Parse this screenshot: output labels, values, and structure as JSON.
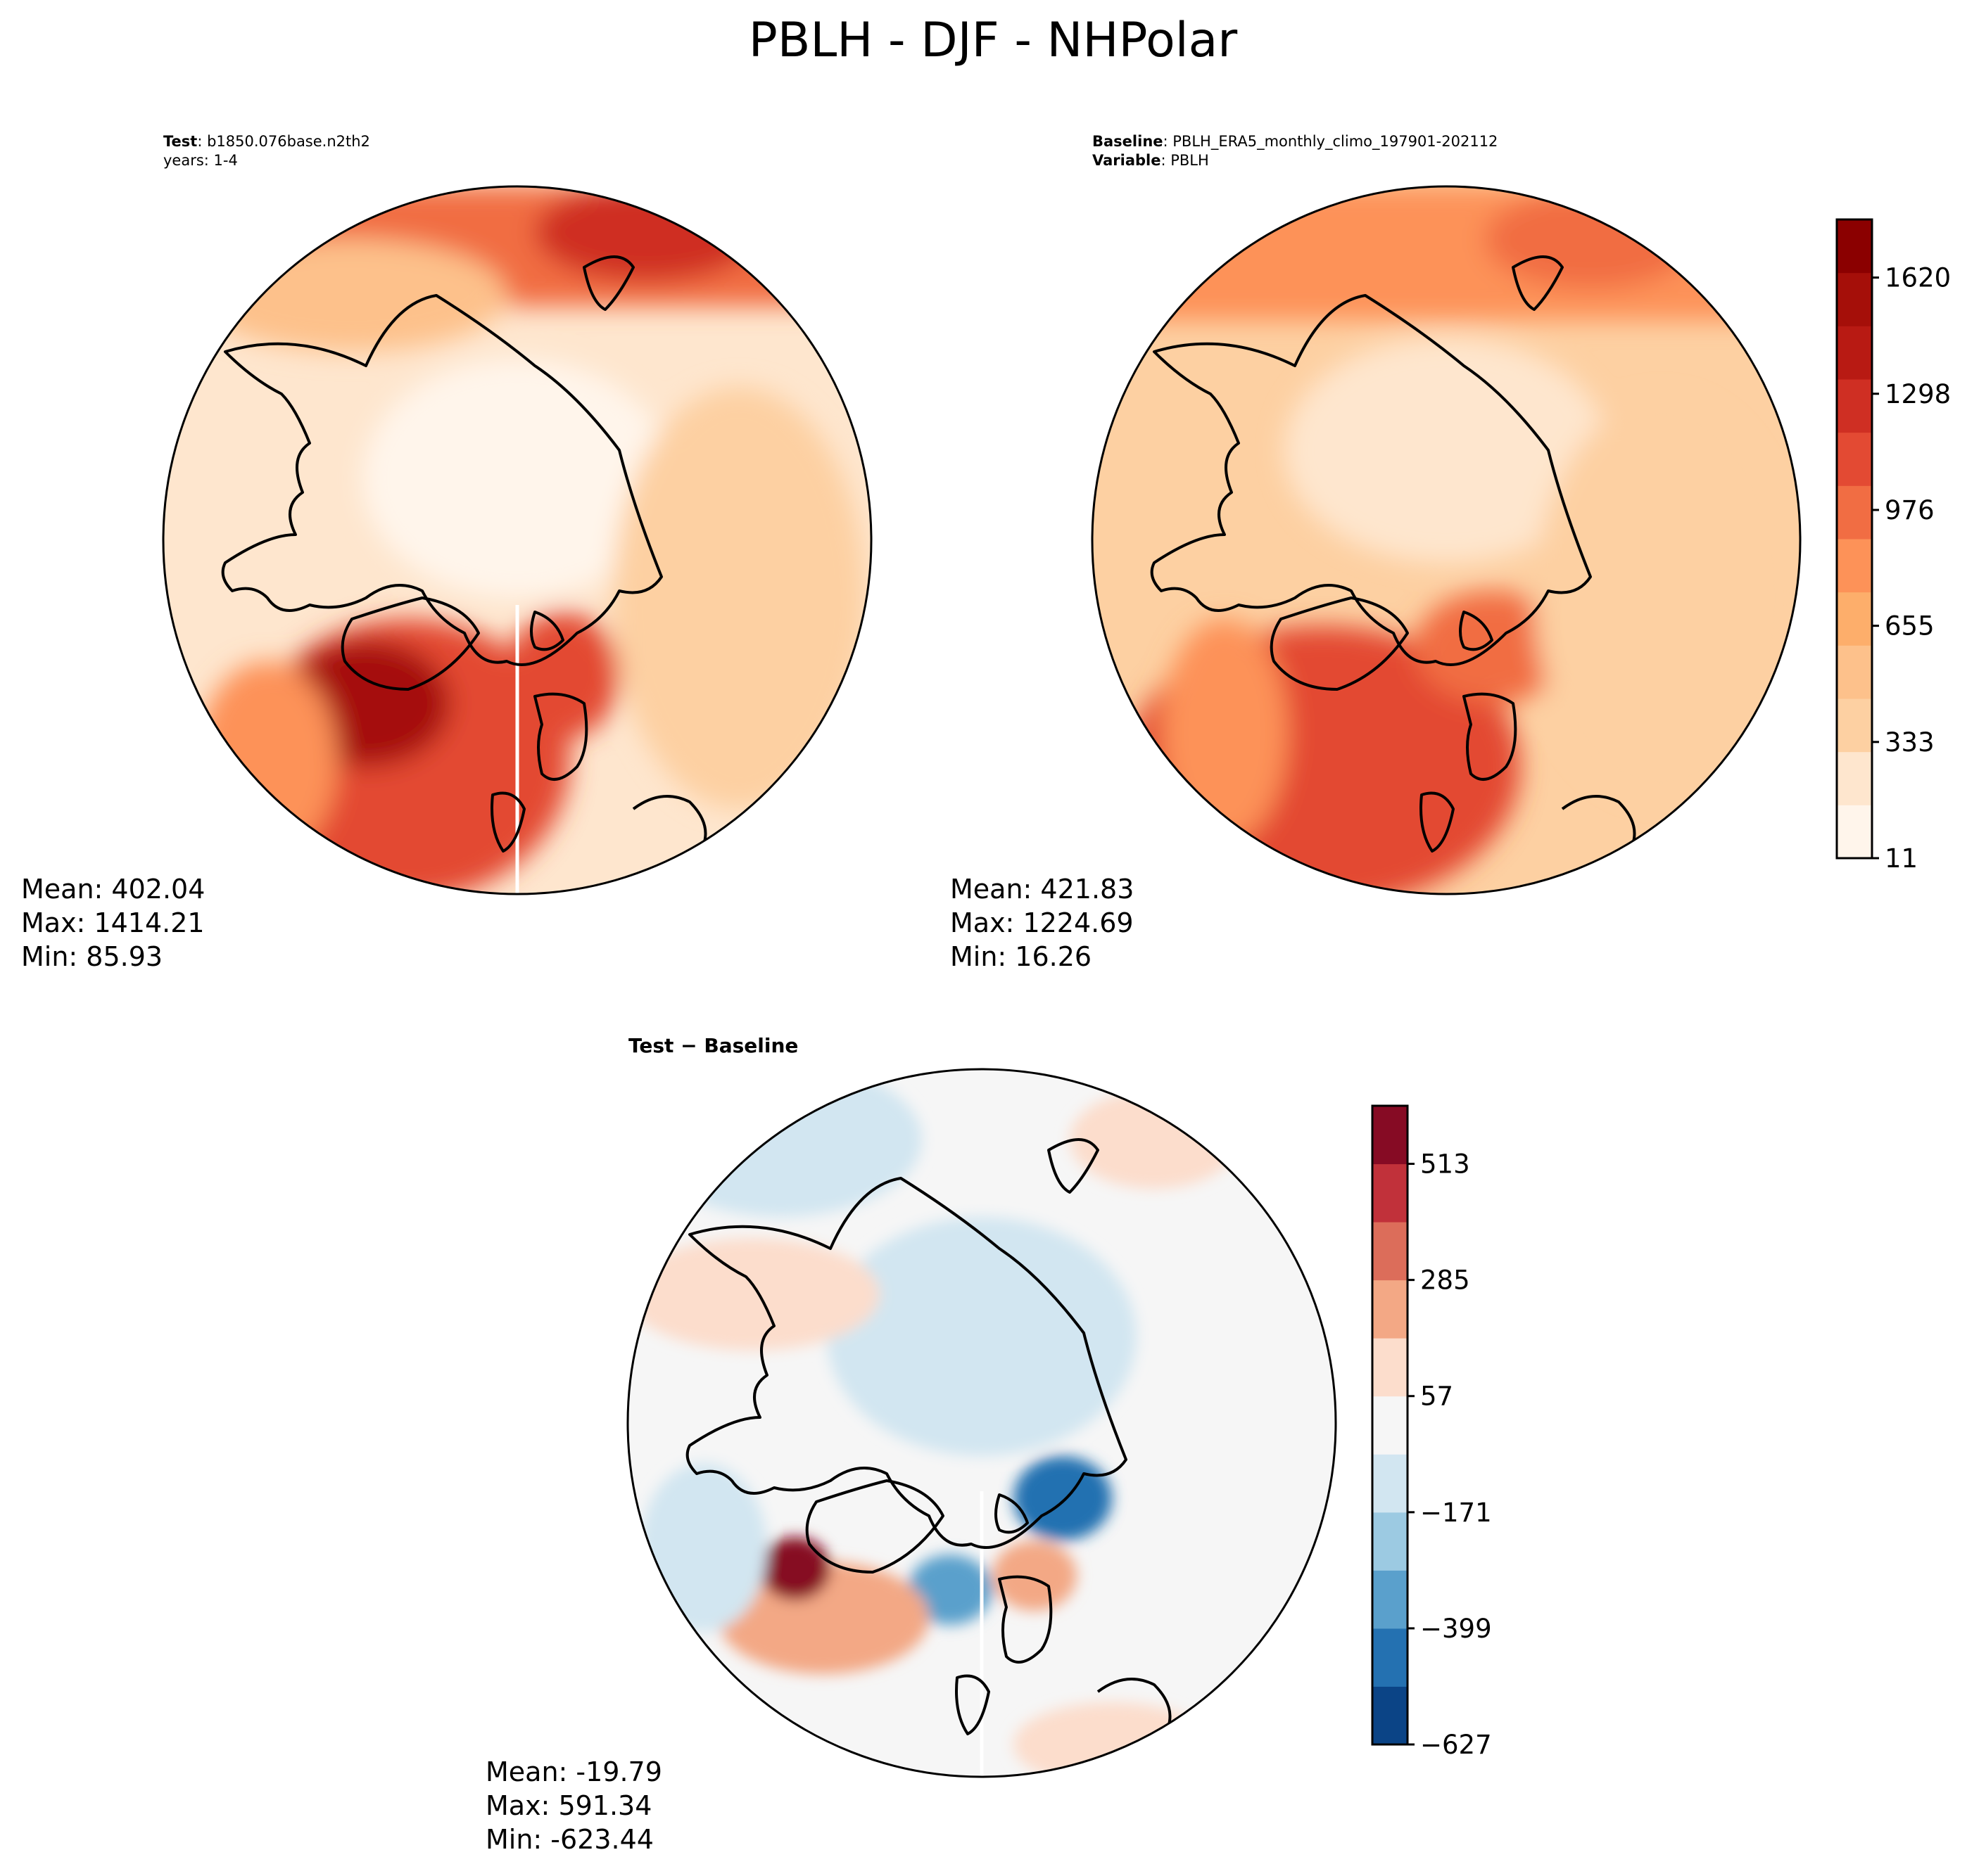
{
  "figure": {
    "title": "PBLH - DJF - NHPolar"
  },
  "chart_data": [
    {
      "type": "heatmap",
      "projection": "north-polar-stereographic",
      "panel": "test",
      "title_lines": [
        {
          "bold": "Test",
          "rest": ": b1850.076base.n2th2"
        },
        {
          "bold": "",
          "rest": "years: 1-4"
        }
      ],
      "stats": {
        "mean": "Mean: 402.04",
        "max": "Max: 1414.21",
        "min": "Min: 85.93"
      },
      "variable": "PBLH",
      "value_range": [
        85.93,
        1414.21
      ]
    },
    {
      "type": "heatmap",
      "projection": "north-polar-stereographic",
      "panel": "baseline",
      "title_lines": [
        {
          "bold": "Baseline",
          "rest": ": PBLH_ERA5_monthly_climo_197901-202112"
        },
        {
          "bold": "Variable",
          "rest": ": PBLH"
        }
      ],
      "stats": {
        "mean": "Mean: 421.83",
        "max": "Max: 1224.69",
        "min": "Min: 16.26"
      },
      "variable": "PBLH",
      "value_range": [
        16.26,
        1224.69
      ],
      "colorbar": {
        "levels_min": 11,
        "levels_max": 1781,
        "ticks": [
          "11",
          "333",
          "655",
          "976",
          "1298",
          "1620"
        ],
        "tick_values": [
          11,
          333,
          655,
          976,
          1298,
          1620
        ],
        "colors": [
          "#fff5eb",
          "#fee6ce",
          "#fdd0a2",
          "#fdc18b",
          "#fdae6b",
          "#fd9258",
          "#f16d43",
          "#e34a33",
          "#cf2f23",
          "#b81a13",
          "#a50f09",
          "#8b0000"
        ]
      }
    },
    {
      "type": "heatmap",
      "projection": "north-polar-stereographic",
      "panel": "difference",
      "title": "Test − Baseline",
      "stats": {
        "mean": "Mean: -19.79",
        "max": "Max: 591.34",
        "min": "Min: -623.44"
      },
      "value_range": [
        -623.44,
        591.34
      ],
      "colorbar": {
        "levels_min": -627,
        "levels_max": 627,
        "ticks": [
          "−627",
          "−399",
          "−171",
          "57",
          "285",
          "513"
        ],
        "tick_values": [
          -627,
          -399,
          -171,
          57,
          285,
          513
        ],
        "colors": [
          "#0b4486",
          "#2471b1",
          "#5aa0cc",
          "#9ccae2",
          "#d2e6f1",
          "#f6f6f6",
          "#fcddcc",
          "#f3a885",
          "#dc6d5a",
          "#c1313a",
          "#860b24"
        ]
      }
    }
  ]
}
